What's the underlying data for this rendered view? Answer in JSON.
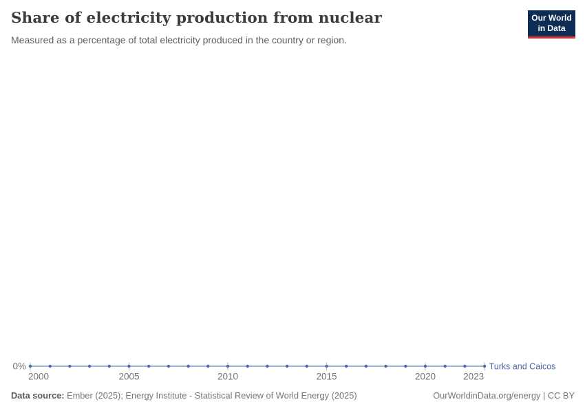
{
  "header": {
    "title": "Share of electricity production from nuclear",
    "subtitle": "Measured as a percentage of total electricity produced in the country or region."
  },
  "logo": {
    "line1": "Our World",
    "line2": "in Data",
    "bg_color": "#0d2d56",
    "accent_color": "#d73c37",
    "text_color": "#ffffff"
  },
  "footer": {
    "source_label": "Data source:",
    "source_text": " Ember (2025); Energy Institute - Statistical Review of World Energy (2025)",
    "credit": "OurWorldinData.org/energy | CC BY"
  },
  "chart_data": {
    "type": "line",
    "title": "Share of electricity production from nuclear",
    "subtitle": "Measured as a percentage of total electricity produced in the country or region.",
    "x": [
      2000,
      2001,
      2002,
      2003,
      2004,
      2005,
      2006,
      2007,
      2008,
      2009,
      2010,
      2011,
      2012,
      2013,
      2014,
      2015,
      2016,
      2017,
      2018,
      2019,
      2020,
      2021,
      2022,
      2023
    ],
    "x_ticks": [
      2000,
      2005,
      2010,
      2015,
      2020,
      2023
    ],
    "y_ticks": [
      0
    ],
    "y_tick_labels": [
      "0%"
    ],
    "x_range": [
      2000,
      2023
    ],
    "grid": "off",
    "legend_position": "end-of-line-label",
    "series": [
      {
        "name": "Turks and Caicos",
        "values": [
          0,
          0,
          0,
          0,
          0,
          0,
          0,
          0,
          0,
          0,
          0,
          0,
          0,
          0,
          0,
          0,
          0,
          0,
          0,
          0,
          0,
          0,
          0,
          0
        ],
        "unit": "%",
        "color": "#4a69a8",
        "line_color": "#9fb3d8"
      }
    ],
    "axis_color": "#b8b8b8",
    "label_color": "#737373"
  }
}
